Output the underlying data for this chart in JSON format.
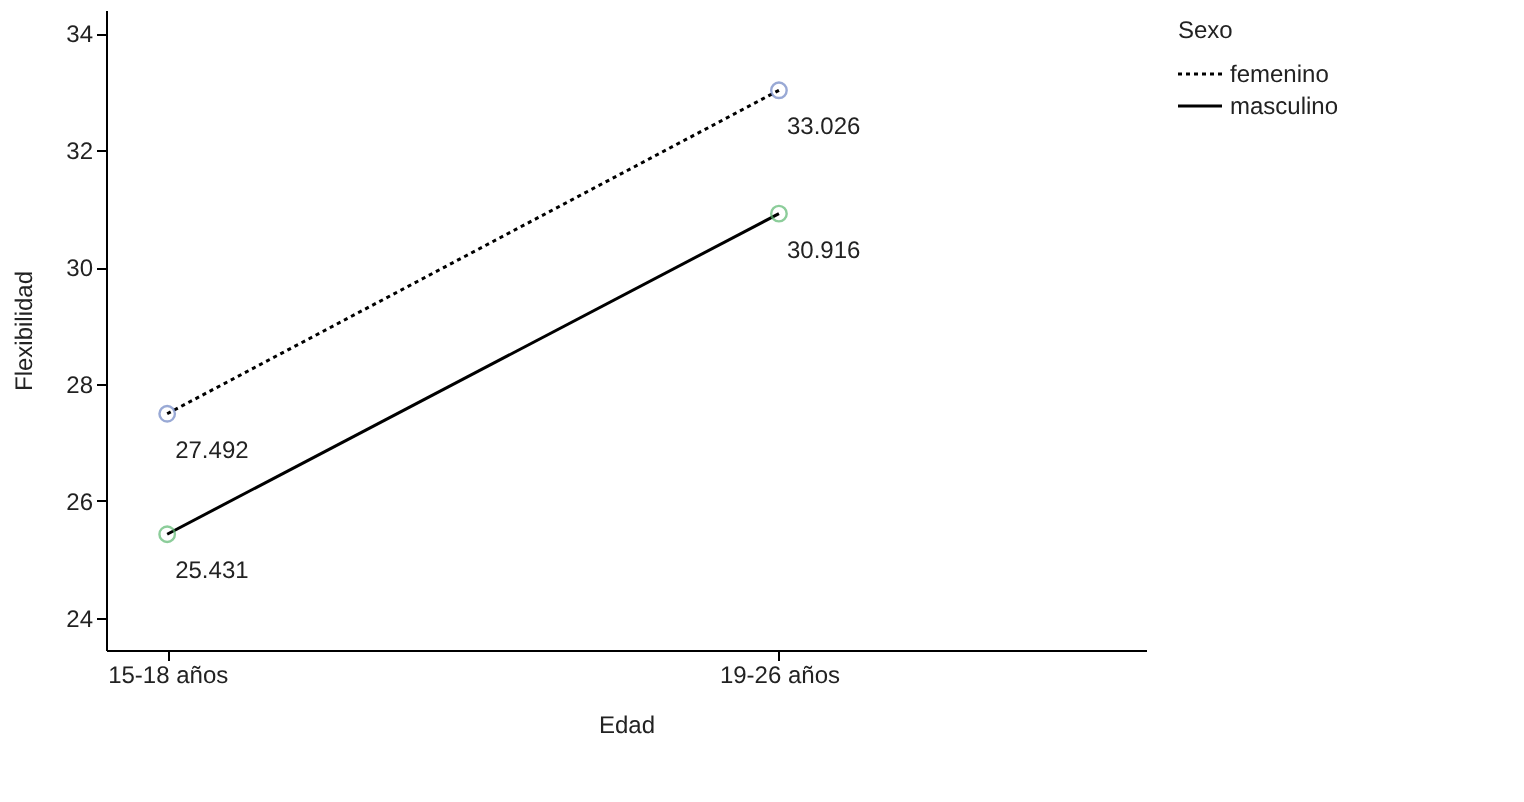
{
  "chart_data": {
    "type": "line",
    "xlabel": "Edad",
    "ylabel": "Flexibilidad",
    "legend_title": "Sexo",
    "categories": [
      "15-18 años",
      "19-26 años"
    ],
    "series": [
      {
        "name": "femenino",
        "color": "#000000",
        "colors": [
          "#6f86c4",
          "#6f86c4"
        ],
        "line_style": "dotted",
        "values": [
          27.492,
          33.026
        ]
      },
      {
        "name": "masculino",
        "color": "#000000",
        "colors": [
          "#5cb870",
          "#5cb870"
        ],
        "line_style": "solid",
        "values": [
          25.431,
          30.916
        ]
      }
    ],
    "ylim": [
      23.45,
      34.4
    ],
    "yticks": [
      24,
      26,
      28,
      30,
      32,
      34
    ],
    "grid": false,
    "legend": "top right",
    "marker": "circle",
    "data_labels": true
  }
}
